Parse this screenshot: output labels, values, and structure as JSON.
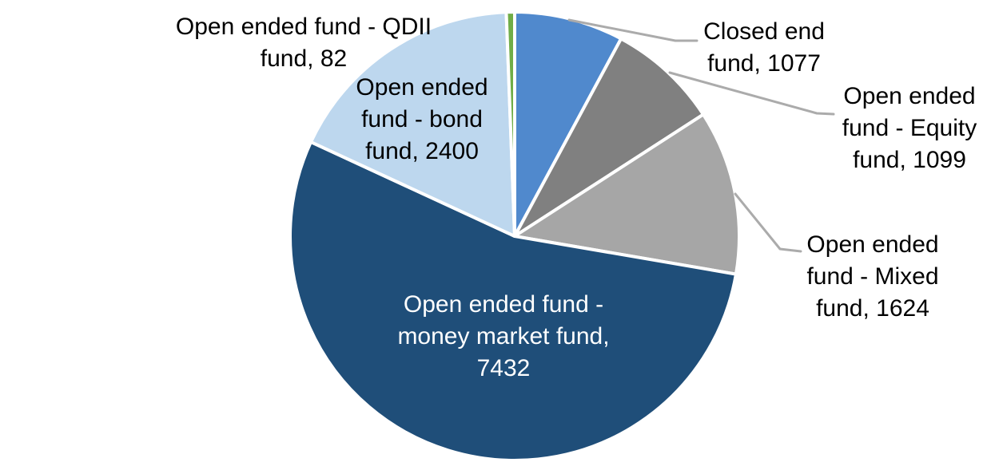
{
  "chart_data": {
    "type": "pie",
    "title": "",
    "legend_position": "none",
    "start_angle_deg": 0,
    "direction": "clockwise",
    "border_color": "#FFFFFF",
    "leader_line_color": "#ABABAB",
    "slices": [
      {
        "label": "Closed end fund",
        "value": 1077,
        "color": "#5089CD",
        "label_color": "#000000",
        "data_label": "Closed end\nfund, 1077"
      },
      {
        "label": "Open ended fund - Equity fund",
        "value": 1099,
        "color": "#808080",
        "label_color": "#000000",
        "data_label": "Open ended\nfund - Equity\nfund, 1099"
      },
      {
        "label": "Open ended fund - Mixed fund",
        "value": 1624,
        "color": "#A6A6A6",
        "label_color": "#000000",
        "data_label": "Open ended\nfund - Mixed\nfund, 1624"
      },
      {
        "label": "Open ended fund - money market fund",
        "value": 7432,
        "color": "#1F4E79",
        "label_color": "#FFFFFF",
        "data_label": "Open ended fund -\nmoney market fund,\n7432"
      },
      {
        "label": "Open ended fund - bond fund",
        "value": 2400,
        "color": "#BDD7EE",
        "label_color": "#000000",
        "data_label": "Open ended\nfund - bond\nfund, 2400"
      },
      {
        "label": "Open ended fund - QDII fund",
        "value": 82,
        "color": "#70AD47",
        "label_color": "#000000",
        "data_label": "Open ended fund - QDII\nfund, 82"
      }
    ]
  }
}
